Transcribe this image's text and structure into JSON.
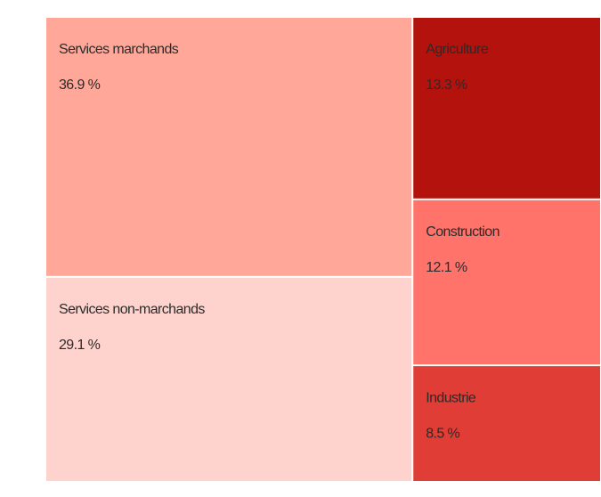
{
  "chart_data": {
    "type": "treemap",
    "categories": [
      "Services marchands",
      "Services non-marchands",
      "Agriculture",
      "Construction",
      "Industrie"
    ],
    "values": [
      36.9,
      29.1,
      13.3,
      12.1,
      8.5
    ],
    "value_labels": [
      "36.9 %",
      "29.1 %",
      "13.3 %",
      "12.1 %",
      "8.5 %"
    ],
    "colors": [
      "#ffa89a",
      "#ffd3cd",
      "#b3120d",
      "#ff736b",
      "#df3d36"
    ]
  }
}
